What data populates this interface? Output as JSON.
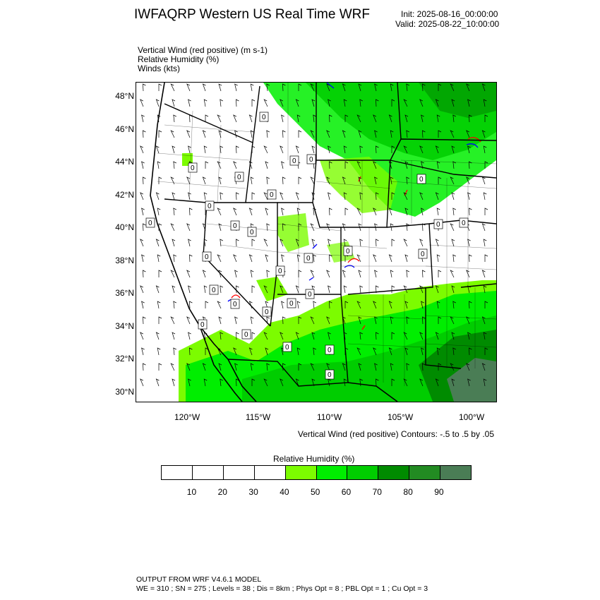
{
  "header": {
    "title": "IWFAQRP Western US Real Time WRF",
    "init": "Init: 2025-08-16_00:00:00",
    "valid": "Valid: 2025-08-22_10:00:00"
  },
  "fields": [
    "Vertical Wind (red positive)   (m s-1)",
    "Relative Humidity   (%)",
    "Winds   (kts)"
  ],
  "map": {
    "lat_labels": [
      "48°N",
      "46°N",
      "44°N",
      "42°N",
      "40°N",
      "38°N",
      "36°N",
      "34°N",
      "32°N",
      "30°N"
    ],
    "lon_labels": [
      "120°W",
      "115°W",
      "110°W",
      "105°W",
      "100°W"
    ],
    "contour_labels": [
      "0",
      "0",
      "0",
      "0",
      "0",
      "0",
      "0",
      "0",
      "0",
      "0",
      "0",
      "0",
      "0",
      "0",
      "0",
      "0",
      "0",
      "0",
      "0",
      "0",
      "0",
      "0",
      "0",
      "0",
      "0",
      "0",
      "0",
      "0"
    ],
    "colors": {
      "land": "#ffffff",
      "rh40": "#7cfc00",
      "rh50": "#00ee00",
      "rh60": "#00cd00",
      "rh70": "#008b00",
      "rh80": "#228b22",
      "rh90": "#4a7d55",
      "updraft": "#ff0000",
      "downdraft": "#0000ff"
    }
  },
  "contour_note": "Vertical Wind (red positive) Contours: -.5 to .5 by .05",
  "colorbar": {
    "title": "Relative Humidity   (%)",
    "colors": [
      "#ffffff",
      "#ffffff",
      "#ffffff",
      "#ffffff",
      "#7cfc00",
      "#00ee00",
      "#00cd00",
      "#008b00",
      "#228b22",
      "#4a7d55"
    ],
    "ticks": [
      "10",
      "20",
      "30",
      "40",
      "50",
      "60",
      "70",
      "80",
      "90"
    ]
  },
  "footer": {
    "line1": "OUTPUT FROM WRF V4.6.1 MODEL",
    "line2": "WE = 310 ; SN = 275 ; Levels = 38 ; Dis = 8km ; Phys Opt = 8 ; PBL Opt = 1 ; Cu Opt = 3"
  }
}
